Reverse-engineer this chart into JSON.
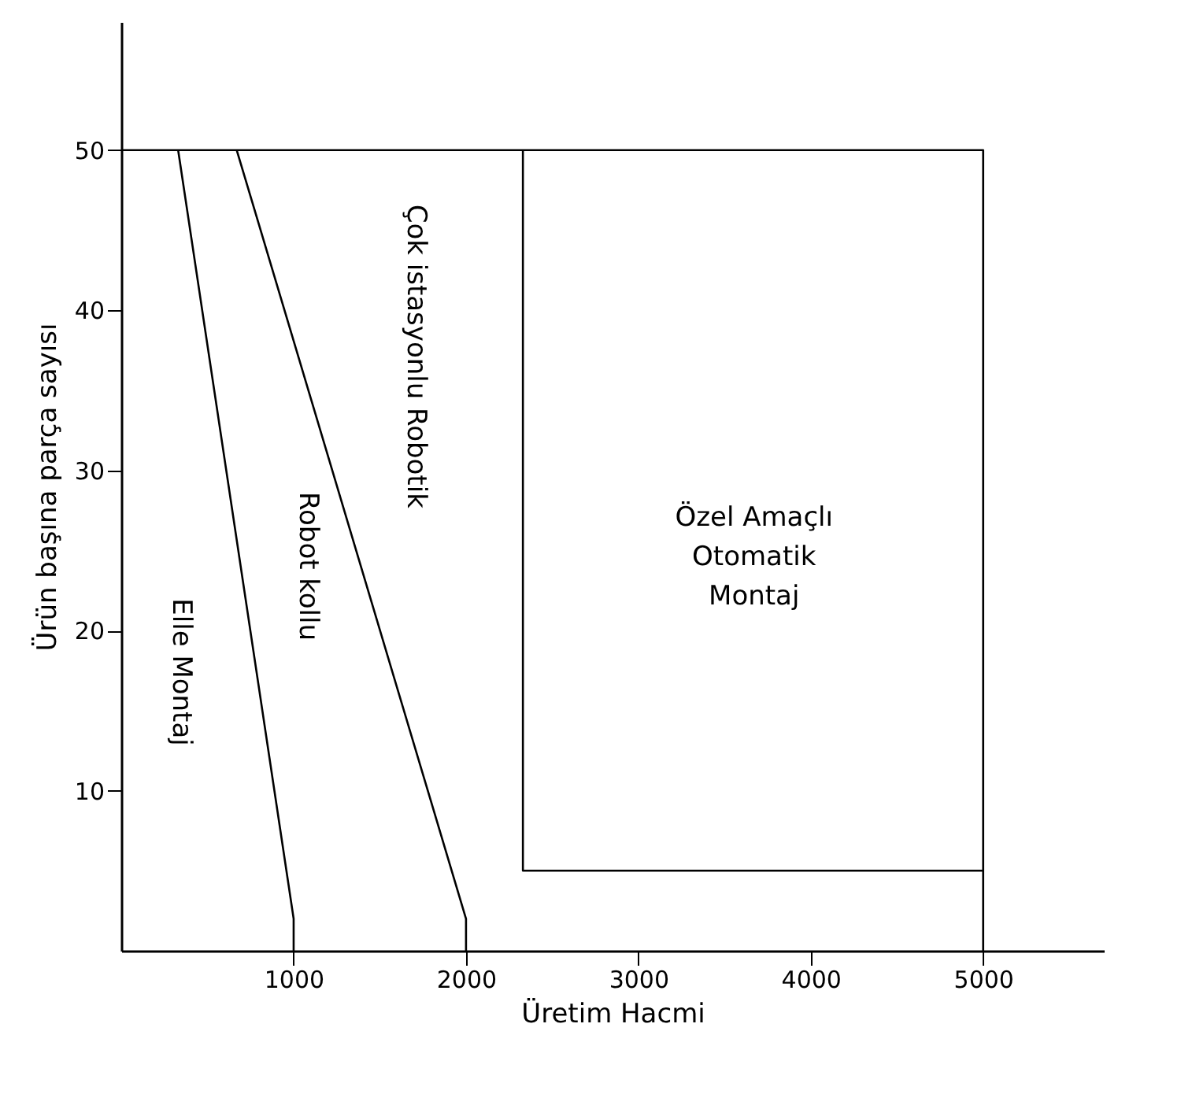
{
  "chart_data": {
    "type": "line",
    "xlabel": "Üretim Hacmi",
    "ylabel": "Ürün başına parça sayısı",
    "xlim": [
      0,
      5700
    ],
    "ylim": [
      0,
      58
    ],
    "xticks": [
      1000,
      2000,
      3000,
      4000,
      5000
    ],
    "yticks": [
      10,
      20,
      30,
      40,
      50
    ],
    "grid": false,
    "legend": false,
    "marker": "none",
    "line_style": "solid",
    "series": [
      {
        "color": "#000000",
        "x": [
          330,
          1000,
          1000
        ],
        "values": [
          50,
          2,
          0
        ]
      },
      {
        "color": "#000000",
        "x": [
          670,
          2000,
          2000
        ],
        "values": [
          50,
          2,
          0
        ]
      },
      {
        "color": "#000000",
        "x": [
          0,
          5000,
          5000
        ],
        "values": [
          50,
          50,
          0
        ]
      },
      {
        "color": "#000000",
        "x": [
          2330,
          2330,
          5000
        ],
        "values": [
          50,
          5,
          5
        ]
      }
    ],
    "annotations": [
      "Elle Montaj",
      "Robot kollu",
      "Çok istasyonlu Robotik",
      "Özel Amaçlı\nOtomatik\nMontaj"
    ]
  }
}
